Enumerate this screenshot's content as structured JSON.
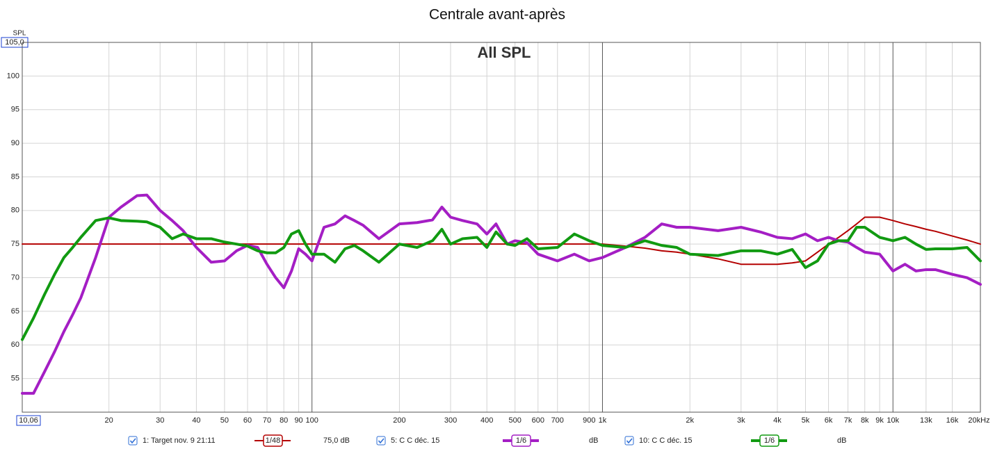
{
  "chart_data": {
    "type": "line",
    "title": "Centrale avant-après",
    "annotation": "All SPL",
    "y_label": "SPL",
    "x_scale": "log",
    "grid": true,
    "xlim": [
      10.06,
      20000
    ],
    "ylim": [
      50,
      105
    ],
    "yticks": [
      55,
      60,
      65,
      70,
      75,
      80,
      85,
      90,
      95,
      100,
      {
        "value": 105,
        "label": "105,0"
      }
    ],
    "xticks": [
      {
        "value": 10.06,
        "label": "10,06"
      },
      20,
      30,
      40,
      50,
      60,
      70,
      80,
      90,
      100,
      200,
      300,
      400,
      500,
      600,
      700,
      900,
      {
        "value": 1000,
        "label": "1k"
      },
      {
        "value": 2000,
        "label": "2k"
      },
      {
        "value": 3000,
        "label": "3k"
      },
      {
        "value": 4000,
        "label": "4k"
      },
      {
        "value": 5000,
        "label": "5k"
      },
      {
        "value": 6000,
        "label": "6k"
      },
      {
        "value": 7000,
        "label": "7k"
      },
      {
        "value": 8000,
        "label": "8k"
      },
      {
        "value": 9000,
        "label": "9k"
      },
      {
        "value": 10000,
        "label": "10k"
      },
      {
        "value": 13000,
        "label": "13k"
      },
      {
        "value": 16000,
        "label": "16k"
      },
      {
        "value": 20000,
        "label": "20kHz"
      }
    ],
    "x": [
      10.06,
      11,
      12,
      13,
      14,
      15,
      16,
      18,
      20,
      22,
      25,
      27,
      30,
      33,
      36,
      40,
      45,
      50,
      55,
      60,
      65,
      70,
      75,
      80,
      85,
      90,
      95,
      100,
      110,
      120,
      130,
      140,
      150,
      170,
      200,
      230,
      260,
      280,
      300,
      330,
      370,
      400,
      430,
      470,
      500,
      550,
      600,
      700,
      800,
      900,
      1000,
      1200,
      1400,
      1600,
      1800,
      2000,
      2500,
      3000,
      3500,
      4000,
      4500,
      5000,
      5500,
      6000,
      6500,
      7000,
      7500,
      8000,
      9000,
      10000,
      11000,
      12000,
      13000,
      14000,
      16000,
      18000,
      20000
    ],
    "series": [
      {
        "name": "1: Target nov. 9 21:11",
        "smoothing": "1/48",
        "legend_value": "75,0 dB",
        "color": "#b40000",
        "width": 2,
        "values": [
          75,
          75,
          75,
          75,
          75,
          75,
          75,
          75,
          75,
          75,
          75,
          75,
          75,
          75,
          75,
          75,
          75,
          75,
          75,
          75,
          75,
          75,
          75,
          75,
          75,
          75,
          75,
          75,
          75,
          75,
          75,
          75,
          75,
          75,
          75,
          75,
          75,
          75,
          75,
          75,
          75,
          75,
          75,
          75,
          75,
          75,
          75,
          75,
          75,
          75,
          75,
          74.7,
          74.4,
          74,
          73.8,
          73.5,
          72.8,
          72,
          72,
          72,
          72.2,
          72.5,
          73.8,
          75,
          76,
          77,
          78,
          79,
          79,
          78.5,
          78,
          77.6,
          77.2,
          76.9,
          76.2,
          75.6,
          75
        ]
      },
      {
        "name": "5: C C déc. 15",
        "smoothing": "1/6",
        "legend_value": "dB",
        "color": "#a41ec4",
        "width": 4,
        "values": [
          52.8,
          52.8,
          56,
          59,
          62,
          64.5,
          67,
          73,
          79,
          80.5,
          82.2,
          82.3,
          80,
          78.5,
          77,
          74.5,
          72.3,
          72.5,
          74,
          74.8,
          74.5,
          72,
          70,
          68.5,
          71,
          74.3,
          73.5,
          72.5,
          77.5,
          78,
          79.2,
          78.5,
          77.8,
          75.8,
          78,
          78.2,
          78.6,
          80.5,
          79,
          78.5,
          78,
          76.5,
          78,
          75,
          75.5,
          75.2,
          73.5,
          72.5,
          73.5,
          72.5,
          73,
          74.5,
          76,
          78,
          77.5,
          77.5,
          77,
          77.5,
          76.8,
          76,
          75.8,
          76.5,
          75.5,
          76,
          75.5,
          75.3,
          74.5,
          73.8,
          73.5,
          71,
          72,
          71,
          71.2,
          71.2,
          70.5,
          70,
          69
        ]
      },
      {
        "name": "10: C C déc. 15",
        "smoothing": "1/6",
        "legend_value": "dB",
        "color": "#119a11",
        "width": 4,
        "values": [
          60.8,
          64,
          67.5,
          70.5,
          73,
          74.5,
          76,
          78.5,
          78.9,
          78.5,
          78.4,
          78.3,
          77.5,
          75.8,
          76.5,
          75.8,
          75.8,
          75.3,
          75,
          74.7,
          74,
          73.7,
          73.7,
          74.5,
          76.5,
          77,
          75,
          73.5,
          73.5,
          72.3,
          74.3,
          74.8,
          74,
          72.3,
          75,
          74.5,
          75.5,
          77.2,
          75,
          75.8,
          76,
          74.5,
          76.8,
          75,
          74.8,
          75.8,
          74.3,
          74.5,
          76.5,
          75.5,
          74.8,
          74.5,
          75.5,
          74.8,
          74.5,
          73.5,
          73.3,
          74,
          74,
          73.5,
          74.2,
          71.5,
          72.5,
          75,
          75.5,
          75.5,
          77.5,
          77.5,
          76,
          75.5,
          76,
          75,
          74.2,
          74.3,
          74.3,
          74.5,
          72.5
        ]
      }
    ]
  }
}
